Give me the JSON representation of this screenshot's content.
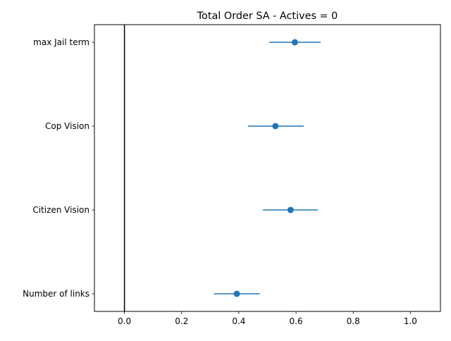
{
  "chart_data": {
    "type": "scatter",
    "subtype": "errorbar-dot-plot",
    "title": "Total Order SA - Actives = 0",
    "xlabel": "",
    "ylabel": "",
    "xlim": [
      -0.105,
      1.105
    ],
    "x_ticks": [
      0.0,
      0.2,
      0.4,
      0.6,
      0.8,
      1.0
    ],
    "x_tick_labels": [
      "0.0",
      "0.2",
      "0.4",
      "0.6",
      "0.8",
      "1.0"
    ],
    "categories": [
      "max Jail term",
      "Cop Vision",
      "Citizen Vision",
      "Number of links"
    ],
    "series": [
      {
        "values": [
          0.596,
          0.528,
          0.581,
          0.393
        ],
        "err_low": [
          0.506,
          0.432,
          0.484,
          0.313
        ],
        "err_high": [
          0.686,
          0.627,
          0.676,
          0.473
        ]
      }
    ],
    "reference_line_x": 0.0,
    "grid": false,
    "legend": "none",
    "colors": {
      "series": "#1f77b4",
      "reference_line": "#000000",
      "axes": "#000000"
    }
  }
}
